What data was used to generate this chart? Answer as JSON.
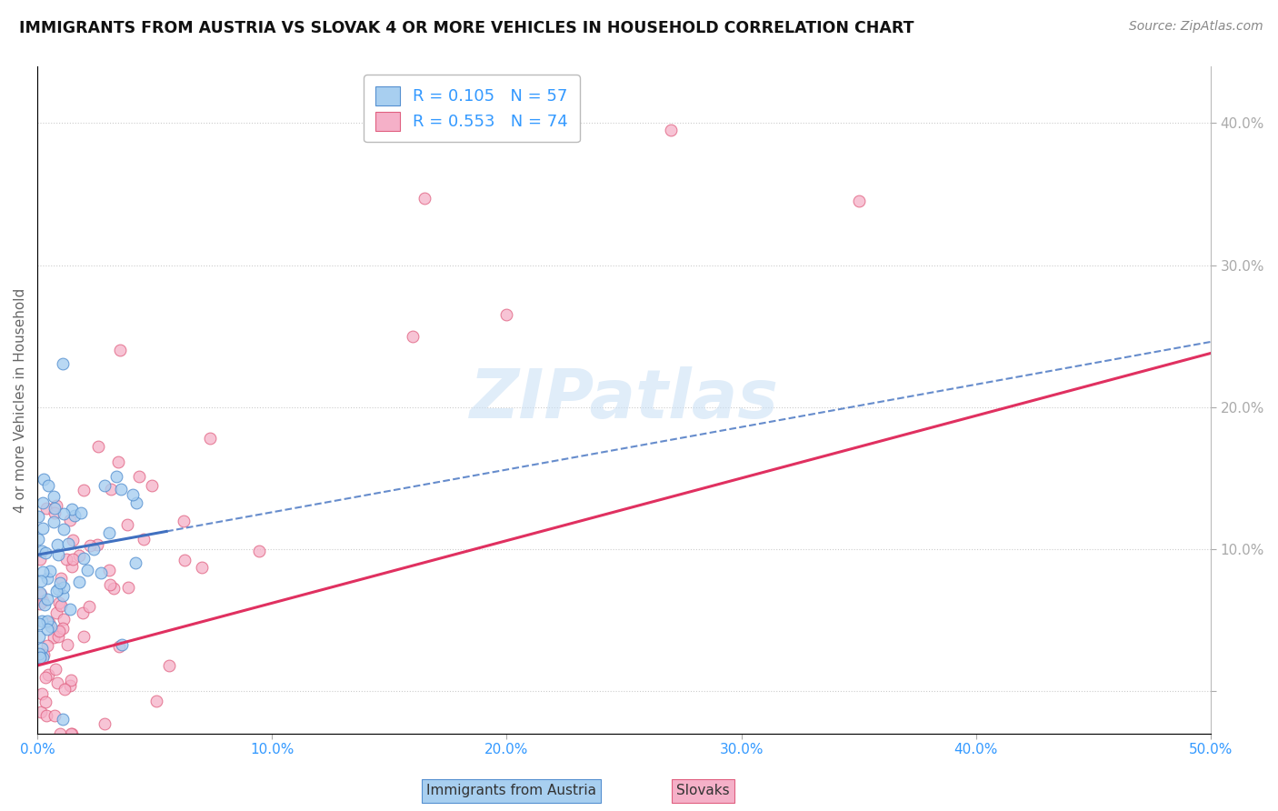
{
  "title": "IMMIGRANTS FROM AUSTRIA VS SLOVAK 4 OR MORE VEHICLES IN HOUSEHOLD CORRELATION CHART",
  "source": "Source: ZipAtlas.com",
  "ylabel": "4 or more Vehicles in Household",
  "xlabel_austria": "Immigrants from Austria",
  "xlabel_slovak": "Slovaks",
  "xlim": [
    0.0,
    0.5
  ],
  "ylim": [
    -0.03,
    0.44
  ],
  "xticks": [
    0.0,
    0.1,
    0.2,
    0.3,
    0.4,
    0.5
  ],
  "yticks": [
    0.0,
    0.1,
    0.2,
    0.3,
    0.4
  ],
  "xtick_labels": [
    "0.0%",
    "10.0%",
    "20.0%",
    "30.0%",
    "40.0%",
    "50.0%"
  ],
  "ytick_labels_right": [
    "",
    "10.0%",
    "20.0%",
    "30.0%",
    "40.0%"
  ],
  "R_austria": 0.105,
  "N_austria": 57,
  "R_slovak": 0.553,
  "N_slovak": 74,
  "austria_color": "#a8cff0",
  "slovak_color": "#f5b0c8",
  "austria_edge_color": "#5590d0",
  "slovak_edge_color": "#e06080",
  "austria_line_color": "#4070c0",
  "slovak_line_color": "#e03060",
  "grid_color": "#cccccc",
  "title_color": "#111111",
  "tick_color": "#3399ff",
  "watermark_color": "#c8dff5"
}
